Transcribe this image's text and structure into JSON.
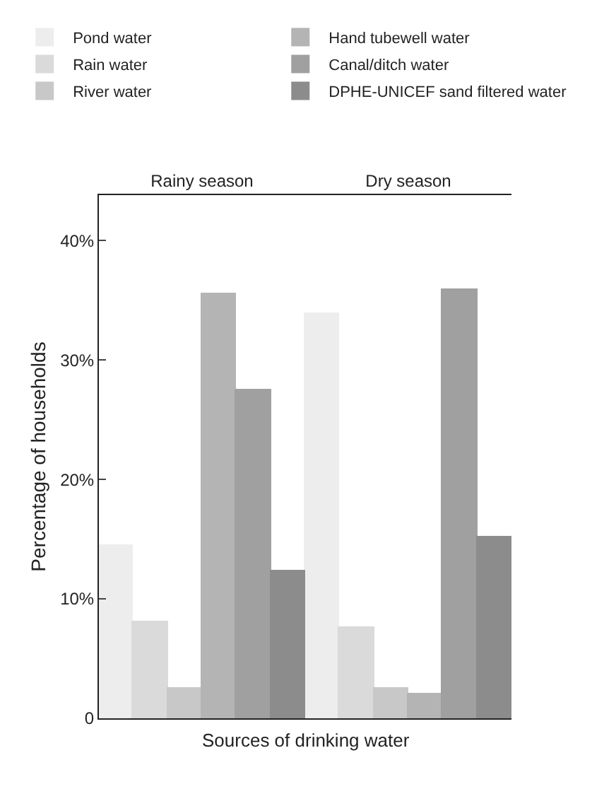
{
  "chart_data": {
    "type": "bar",
    "xlabel": "Sources of drinking water",
    "ylabel": "Percentage of households",
    "categories": [
      "Rainy season",
      "Dry season"
    ],
    "series": [
      {
        "name": "Pond water",
        "color": "#ededed",
        "values": [
          14.5,
          33.9
        ]
      },
      {
        "name": "Rain water",
        "color": "#dadada",
        "values": [
          8.1,
          7.6
        ]
      },
      {
        "name": "River water",
        "color": "#c8c8c8",
        "values": [
          2.5,
          2.5
        ]
      },
      {
        "name": "Hand tubewell water",
        "color": "#b4b4b4",
        "values": [
          35.5,
          2.0
        ]
      },
      {
        "name": "Canal/ditch water",
        "color": "#a0a0a0",
        "values": [
          27.5,
          35.9
        ]
      },
      {
        "name": "DPHE-UNICEF sand filtered water",
        "color": "#8c8c8c",
        "values": [
          12.3,
          15.2
        ]
      }
    ],
    "ylim": [
      0,
      43.8
    ],
    "yticks": [
      0,
      {
        "value": 10,
        "label": "10%"
      },
      {
        "value": 20,
        "label": "20%"
      },
      {
        "value": 30,
        "label": "30%"
      },
      {
        "value": 40,
        "label": "40%"
      }
    ],
    "grid": false,
    "legend": "top"
  }
}
